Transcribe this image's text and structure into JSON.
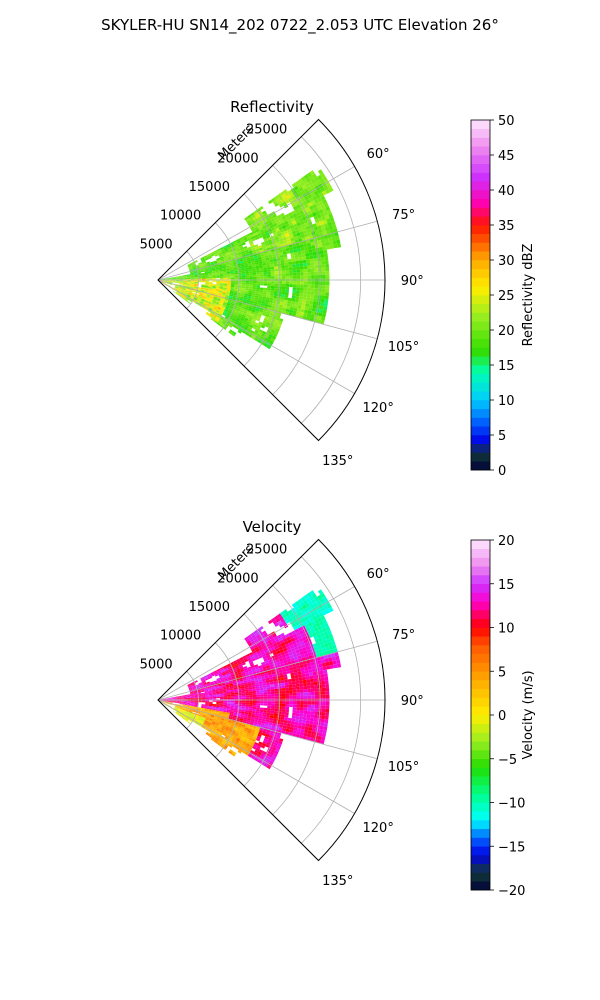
{
  "figure_title": "SKYLER-HU  SN14_202  0722_2.053 UTC Elevation 26°",
  "chart_data": [
    {
      "type": "polar-sector",
      "title": "Reflectivity",
      "radial_label": "Meters",
      "radial_ticks": [
        5000,
        10000,
        15000,
        20000,
        25000
      ],
      "angular_ticks": [
        "60°",
        "75°",
        "90°",
        "105°",
        "120°",
        "135°"
      ],
      "theta_range_deg": [
        45,
        135
      ],
      "r_max_m": 28000,
      "grid": true,
      "field": "Reflectivity",
      "colorbar": {
        "label": "Reflectivity dBZ",
        "range": [
          0,
          50
        ],
        "ticks": [
          0,
          5,
          10,
          15,
          20,
          25,
          30,
          35,
          40,
          45,
          50
        ],
        "colormap": [
          {
            "v": 0,
            "c": "#00003a"
          },
          {
            "v": 2.5,
            "c": "#123b36"
          },
          {
            "v": 4,
            "c": "#0000e6"
          },
          {
            "v": 7,
            "c": "#0066ff"
          },
          {
            "v": 10,
            "c": "#00ccff"
          },
          {
            "v": 14,
            "c": "#00ffb0"
          },
          {
            "v": 17,
            "c": "#33dd00"
          },
          {
            "v": 22,
            "c": "#99ee22"
          },
          {
            "v": 26,
            "c": "#ffee00"
          },
          {
            "v": 30,
            "c": "#ffaa00"
          },
          {
            "v": 35,
            "c": "#ff1500"
          },
          {
            "v": 38,
            "c": "#ff00aa"
          },
          {
            "v": 42,
            "c": "#cc33ff"
          },
          {
            "v": 46,
            "c": "#ee88ee"
          },
          {
            "v": 50,
            "c": "#ffe8ff"
          }
        ]
      }
    },
    {
      "type": "polar-sector",
      "title": "Velocity",
      "radial_label": "Meters",
      "radial_ticks": [
        5000,
        10000,
        15000,
        20000,
        25000
      ],
      "angular_ticks": [
        "60°",
        "75°",
        "90°",
        "105°",
        "120°",
        "135°"
      ],
      "theta_range_deg": [
        45,
        135
      ],
      "r_max_m": 28000,
      "grid": true,
      "field": "Velocity",
      "colorbar": {
        "label": "Velocity (m/s)",
        "range": [
          -20,
          20
        ],
        "ticks": [
          -20,
          -15,
          -10,
          -5,
          0,
          5,
          10,
          15,
          20
        ],
        "colormap": [
          {
            "v": -20,
            "c": "#00003a"
          },
          {
            "v": -18,
            "c": "#123b36"
          },
          {
            "v": -16,
            "c": "#0000e6"
          },
          {
            "v": -14,
            "c": "#0066ff"
          },
          {
            "v": -12,
            "c": "#00ffff"
          },
          {
            "v": -9,
            "c": "#00ff88"
          },
          {
            "v": -6,
            "c": "#22dd00"
          },
          {
            "v": -3,
            "c": "#99ee22"
          },
          {
            "v": 0,
            "c": "#ffee00"
          },
          {
            "v": 4,
            "c": "#ffaa00"
          },
          {
            "v": 8,
            "c": "#ff5500"
          },
          {
            "v": 10,
            "c": "#ff0000"
          },
          {
            "v": 13,
            "c": "#ff00cc"
          },
          {
            "v": 15,
            "c": "#cc33ff"
          },
          {
            "v": 17,
            "c": "#ee88ee"
          },
          {
            "v": 20,
            "c": "#ffe8ff"
          }
        ]
      }
    }
  ]
}
